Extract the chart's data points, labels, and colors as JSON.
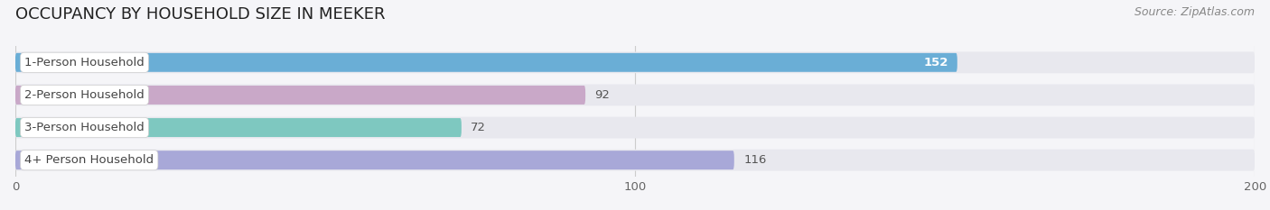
{
  "title": "OCCUPANCY BY HOUSEHOLD SIZE IN MEEKER",
  "source": "Source: ZipAtlas.com",
  "categories": [
    "1-Person Household",
    "2-Person Household",
    "3-Person Household",
    "4+ Person Household"
  ],
  "values": [
    152,
    92,
    72,
    116
  ],
  "bar_colors": [
    "#6aaed6",
    "#c9a8c8",
    "#7ec8c0",
    "#a8a8d8"
  ],
  "value_inside": [
    true,
    false,
    false,
    false
  ],
  "xlim": [
    0,
    200
  ],
  "xticks": [
    0,
    100,
    200
  ],
  "bar_height": 0.58,
  "row_bg_color": "#e8e8ee",
  "bar_bg_color": "#ebebf0",
  "background_color": "#f5f5f8",
  "plot_bg_color": "#f5f5f8",
  "title_fontsize": 13,
  "label_fontsize": 9.5,
  "value_fontsize": 9.5,
  "tick_fontsize": 9.5,
  "source_fontsize": 9
}
